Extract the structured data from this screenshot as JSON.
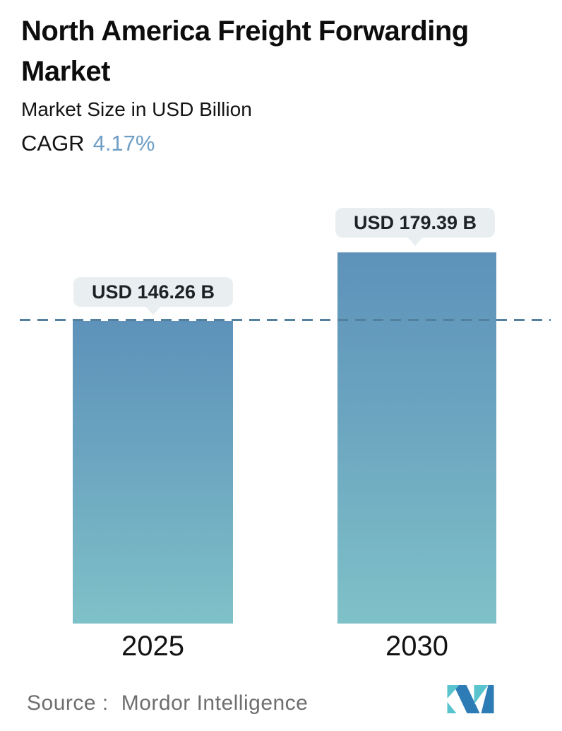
{
  "header": {
    "title": "North America Freight Forwarding Market",
    "subtitle": "Market Size in USD Billion",
    "cagr_label": "CAGR",
    "cagr_value": "4.17%"
  },
  "chart_data": {
    "type": "bar",
    "categories": [
      "2025",
      "2030"
    ],
    "values": [
      146.26,
      179.39
    ],
    "value_labels": [
      "USD 146.26 B",
      "USD 179.39 B"
    ],
    "title": "North America Freight Forwarding Market",
    "subtitle": "Market Size in USD Billion",
    "unit": "USD Billion",
    "cagr": "4.17%",
    "xlabel": "",
    "ylabel": "",
    "ylim": [
      0,
      195
    ],
    "grid": false,
    "legend": "none",
    "reference_line": {
      "value": 146.26,
      "style": "dashed",
      "color": "#54809f"
    },
    "colors": {
      "bar_gradient_top": "#5e92ba",
      "bar_gradient_bottom": "#7fc1c8",
      "callout_background": "#e9eff1",
      "accent_blue": "#6f9ec4",
      "label_text": "#1c2326"
    }
  },
  "footer": {
    "source_label": "Source :",
    "source_value": "Mordor Intelligence",
    "logo": "mordor-intelligence-logo",
    "logo_colors": {
      "blue": "#2d7cb5",
      "teal": "#59c4cd"
    }
  }
}
